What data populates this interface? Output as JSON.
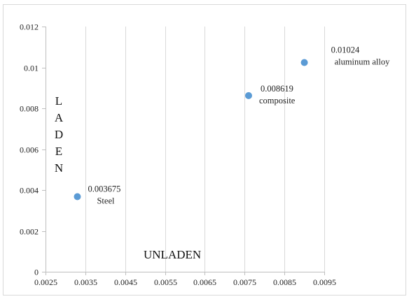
{
  "chart_data": {
    "type": "scatter",
    "title": "",
    "xlabel": "UNLADEN",
    "ylabel": "LADEN",
    "xlim": [
      0.0025,
      0.0095
    ],
    "ylim": [
      0,
      0.012
    ],
    "x_ticks": [
      "0.0025",
      "0.0035",
      "0.0045",
      "0.0055",
      "0.0065",
      "0.0075",
      "0.0085",
      "0.0095"
    ],
    "y_ticks": [
      "0",
      "0.002",
      "0.004",
      "0.006",
      "0.008",
      "0.01",
      "0.012"
    ],
    "grid": "vertical",
    "series": [
      {
        "color": "#5B9BD5",
        "points": [
          {
            "x": 0.0033,
            "y": 0.003675,
            "value_label": "0.003675",
            "name_label": "Steel"
          },
          {
            "x": 0.0076,
            "y": 0.008619,
            "value_label": "0.008619",
            "name_label": "composite"
          },
          {
            "x": 0.009,
            "y": 0.01024,
            "value_label": "0.01024",
            "name_label": "aluminum alloy"
          }
        ]
      }
    ]
  }
}
